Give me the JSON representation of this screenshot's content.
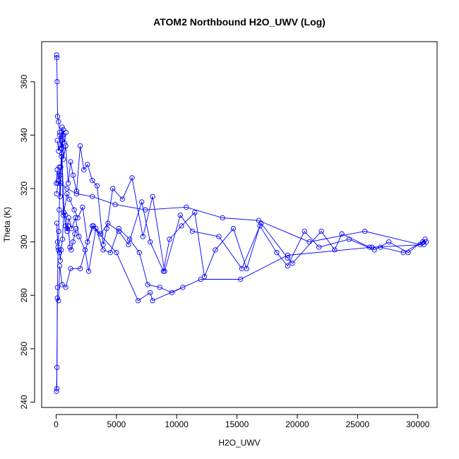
{
  "chart_data": {
    "type": "line",
    "title": "ATOM2 Northbound H2O_UWV (Log)",
    "xlabel": "H2O_UWV",
    "ylabel": "Theta (K)",
    "xlim": [
      -1200,
      31600
    ],
    "ylim": [
      238,
      375
    ],
    "xticks": [
      0,
      5000,
      10000,
      15000,
      20000,
      25000,
      30000
    ],
    "xtick_labels": [
      "0",
      "5000",
      "10000",
      "15000",
      "20000",
      "25000",
      "30000"
    ],
    "yticks": [
      240,
      260,
      280,
      300,
      320,
      340,
      360
    ],
    "ytick_labels": [
      "240",
      "260",
      "280",
      "300",
      "320",
      "340",
      "360"
    ],
    "grid": false,
    "legend": "none",
    "series_color": "#0000ff",
    "marker": "open-circle",
    "series": [
      {
        "x": [
          40,
          60,
          80,
          120,
          200,
          300,
          400,
          500,
          600,
          800,
          1000,
          1200,
          1400,
          1700,
          2000,
          2300,
          2600,
          3000,
          3400,
          3900,
          4200,
          4700,
          5500,
          6300,
          7200,
          8000,
          9000,
          10300,
          11300,
          13500,
          15400,
          17000,
          19200,
          19600,
          22000,
          23100,
          23700,
          26000,
          26900,
          28800,
          30400,
          30700,
          30500,
          26200,
          19200,
          15300,
          12000,
          8000,
          7800,
          6800,
          5000,
          3000,
          2000,
          1200,
          800,
          500,
          300,
          200,
          100,
          60
        ],
        "y": [
          370,
          369,
          360,
          347,
          345,
          341,
          335,
          343,
          331,
          336,
          322,
          330,
          325,
          319,
          336,
          327,
          329,
          323,
          321,
          299,
          305,
          320,
          316,
          324,
          302,
          317,
          289,
          310,
          304,
          302,
          290,
          307,
          294,
          292,
          304,
          297,
          303,
          298,
          298,
          296,
          300,
          300,
          299,
          298,
          295,
          286,
          286,
          278,
          281,
          278,
          296,
          306,
          290,
          290,
          283,
          284,
          291,
          278,
          279,
          245
        ]
      },
      {
        "x": [
          100,
          200,
          300,
          450,
          600,
          900,
          1100,
          1500,
          1800,
          2200,
          2600,
          3100,
          3700,
          4300,
          5200,
          6000,
          7100,
          7800,
          8900,
          9400,
          10400,
          11500,
          12300,
          13200,
          14700,
          15800,
          16900,
          18300,
          19200,
          20600,
          21800,
          24300,
          26400,
          27600,
          29200,
          30600,
          30200,
          25600,
          21000,
          16800,
          13800,
          10800,
          7400,
          4900,
          3000,
          1700,
          900,
          400,
          150,
          50
        ],
        "y": [
          338,
          334,
          340,
          338,
          310,
          318,
          316,
          312,
          309,
          313,
          300,
          306,
          303,
          307,
          304,
          299,
          315,
          300,
          289,
          301,
          306,
          311,
          287,
          297,
          305,
          290,
          306,
          296,
          291,
          304,
          298,
          301,
          297,
          300,
          296,
          301,
          299,
          304,
          300,
          308,
          309,
          313,
          312,
          314,
          317,
          318,
          320,
          322,
          322,
          318
        ]
      },
      {
        "x": [
          20,
          90,
          180,
          260,
          340,
          480,
          650,
          780,
          920,
          1050,
          1300,
          1600,
          1900,
          2400,
          2700,
          3300,
          3900,
          4500,
          5200,
          6100,
          6900,
          7600,
          8600,
          9600,
          10500
        ],
        "y": [
          322,
          327,
          323,
          328,
          317,
          333,
          311,
          306,
          304,
          309,
          305,
          309,
          302,
          297,
          289,
          305,
          297,
          296,
          305,
          301,
          296,
          284,
          283,
          281,
          283
        ]
      },
      {
        "x": [
          60,
          120,
          200,
          280,
          350,
          420,
          520,
          640,
          780,
          900,
          1000,
          1150,
          1250,
          1400,
          1550,
          1650
        ],
        "y": [
          307,
          300,
          297,
          296,
          293,
          297,
          301,
          311,
          310,
          305,
          306,
          298,
          297,
          300,
          303,
          305
        ]
      },
      {
        "x": [
          30,
          70,
          110,
          160,
          220,
          260,
          330,
          380,
          430,
          480,
          560,
          600,
          700,
          820
        ],
        "y": [
          244,
          253,
          283,
          298,
          304,
          312,
          325,
          328,
          332,
          335,
          340,
          342,
          337,
          341
        ]
      }
    ]
  }
}
